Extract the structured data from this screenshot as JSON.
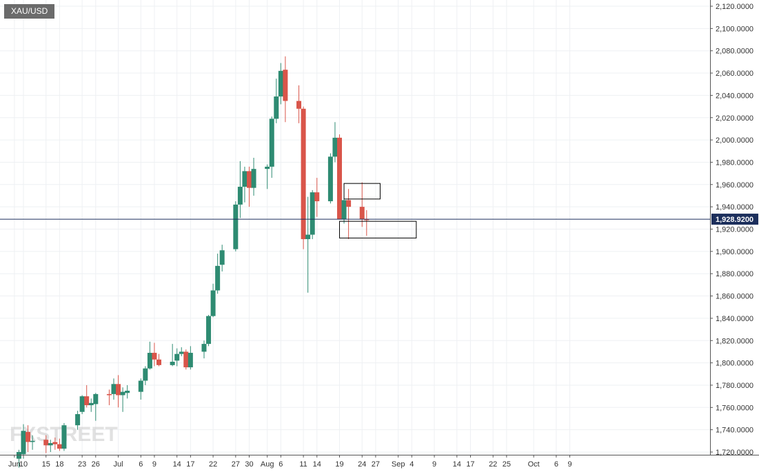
{
  "symbol": "XAU/USD",
  "watermark": "FXSTREET",
  "colors": {
    "up": "#2e8b72",
    "down": "#d9554a",
    "grid": "#eef0f3",
    "axis": "#555555",
    "price_line": "#1c2f5c",
    "box": "#000000"
  },
  "chart_data": {
    "type": "candlestick",
    "current_price": 1928.92,
    "current_price_label": "1,928.9200",
    "ylim": [
      1718,
      2124
    ],
    "y_ticks": [
      "2,120.0000",
      "2,100.0000",
      "2,080.0000",
      "2,060.0000",
      "2,040.0000",
      "2,020.0000",
      "2,000.0000",
      "1,980.0000",
      "1,960.0000",
      "1,940.0000",
      "1,920.0000",
      "1,900.0000",
      "1,880.0000",
      "1,860.0000",
      "1,840.0000",
      "1,820.0000",
      "1,800.0000",
      "1,780.0000",
      "1,760.0000",
      "1,740.0000",
      "1,720.0000"
    ],
    "y_tick_values": [
      2120,
      2100,
      2080,
      2060,
      2040,
      2020,
      2000,
      1980,
      1960,
      1940,
      1920,
      1900,
      1880,
      1860,
      1840,
      1820,
      1800,
      1780,
      1760,
      1740,
      1720
    ],
    "x_ticks": [
      {
        "label": "Jun",
        "date": "2020-06-08"
      },
      {
        "label": "10",
        "date": "2020-06-10"
      },
      {
        "label": "15",
        "date": "2020-06-15"
      },
      {
        "label": "18",
        "date": "2020-06-18"
      },
      {
        "label": "23",
        "date": "2020-06-23"
      },
      {
        "label": "26",
        "date": "2020-06-26"
      },
      {
        "label": "Jul",
        "date": "2020-07-01"
      },
      {
        "label": "6",
        "date": "2020-07-06"
      },
      {
        "label": "9",
        "date": "2020-07-09"
      },
      {
        "label": "14",
        "date": "2020-07-14"
      },
      {
        "label": "17",
        "date": "2020-07-17"
      },
      {
        "label": "22",
        "date": "2020-07-22"
      },
      {
        "label": "27",
        "date": "2020-07-27"
      },
      {
        "label": "30",
        "date": "2020-07-30"
      },
      {
        "label": "Aug",
        "date": "2020-08-03"
      },
      {
        "label": "6",
        "date": "2020-08-06"
      },
      {
        "label": "11",
        "date": "2020-08-11"
      },
      {
        "label": "14",
        "date": "2020-08-14"
      },
      {
        "label": "19",
        "date": "2020-08-19"
      },
      {
        "label": "24",
        "date": "2020-08-24"
      },
      {
        "label": "27",
        "date": "2020-08-27"
      },
      {
        "label": "Sep",
        "date": "2020-09-01"
      },
      {
        "label": "4",
        "date": "2020-09-04"
      },
      {
        "label": "9",
        "date": "2020-09-09"
      },
      {
        "label": "14",
        "date": "2020-09-14"
      },
      {
        "label": "17",
        "date": "2020-09-17"
      },
      {
        "label": "22",
        "date": "2020-09-22"
      },
      {
        "label": "25",
        "date": "2020-09-25"
      },
      {
        "label": "Oct",
        "date": "2020-10-01"
      },
      {
        "label": "6",
        "date": "2020-10-06"
      },
      {
        "label": "9",
        "date": "2020-10-09"
      }
    ],
    "candles": [
      {
        "date": "2020-06-09",
        "o": 1714,
        "h": 1722,
        "l": 1706,
        "c": 1720
      },
      {
        "date": "2020-06-10",
        "o": 1718,
        "h": 1745,
        "l": 1714,
        "c": 1739
      },
      {
        "date": "2020-06-11",
        "o": 1738,
        "h": 1744,
        "l": 1720,
        "c": 1729
      },
      {
        "date": "2020-06-12",
        "o": 1729,
        "h": 1735,
        "l": 1722,
        "c": 1730
      },
      {
        "date": "2020-06-15",
        "o": 1731,
        "h": 1735,
        "l": 1719,
        "c": 1726
      },
      {
        "date": "2020-06-16",
        "o": 1726,
        "h": 1731,
        "l": 1720,
        "c": 1728
      },
      {
        "date": "2020-06-17",
        "o": 1729,
        "h": 1733,
        "l": 1722,
        "c": 1727
      },
      {
        "date": "2020-06-18",
        "o": 1727,
        "h": 1732,
        "l": 1721,
        "c": 1723
      },
      {
        "date": "2020-06-19",
        "o": 1723,
        "h": 1746,
        "l": 1721,
        "c": 1744
      },
      {
        "date": "2020-06-22",
        "o": 1744,
        "h": 1757,
        "l": 1740,
        "c": 1754
      },
      {
        "date": "2020-06-23",
        "o": 1756,
        "h": 1771,
        "l": 1754,
        "c": 1770
      },
      {
        "date": "2020-06-24",
        "o": 1770,
        "h": 1780,
        "l": 1760,
        "c": 1762
      },
      {
        "date": "2020-06-25",
        "o": 1762,
        "h": 1768,
        "l": 1756,
        "c": 1764
      },
      {
        "date": "2020-06-26",
        "o": 1763,
        "h": 1773,
        "l": 1748,
        "c": 1772
      },
      {
        "date": "2020-06-29",
        "o": 1772,
        "h": 1776,
        "l": 1762,
        "c": 1771
      },
      {
        "date": "2020-06-30",
        "o": 1772,
        "h": 1786,
        "l": 1767,
        "c": 1781
      },
      {
        "date": "2020-07-01",
        "o": 1781,
        "h": 1789,
        "l": 1760,
        "c": 1771
      },
      {
        "date": "2020-07-02",
        "o": 1771,
        "h": 1778,
        "l": 1756,
        "c": 1774
      },
      {
        "date": "2020-07-03",
        "o": 1773,
        "h": 1780,
        "l": 1768,
        "c": 1775
      },
      {
        "date": "2020-07-06",
        "o": 1774,
        "h": 1786,
        "l": 1767,
        "c": 1784
      },
      {
        "date": "2020-07-07",
        "o": 1784,
        "h": 1797,
        "l": 1780,
        "c": 1795
      },
      {
        "date": "2020-07-08",
        "o": 1795,
        "h": 1819,
        "l": 1794,
        "c": 1809
      },
      {
        "date": "2020-07-09",
        "o": 1809,
        "h": 1818,
        "l": 1797,
        "c": 1803
      },
      {
        "date": "2020-07-10",
        "o": 1803,
        "h": 1808,
        "l": 1797,
        "c": 1798
      },
      {
        "date": "2020-07-13",
        "o": 1798,
        "h": 1817,
        "l": 1797,
        "c": 1801
      },
      {
        "date": "2020-07-14",
        "o": 1802,
        "h": 1813,
        "l": 1797,
        "c": 1808
      },
      {
        "date": "2020-07-15",
        "o": 1808,
        "h": 1814,
        "l": 1806,
        "c": 1810
      },
      {
        "date": "2020-07-16",
        "o": 1810,
        "h": 1812,
        "l": 1794,
        "c": 1796
      },
      {
        "date": "2020-07-17",
        "o": 1796,
        "h": 1815,
        "l": 1794,
        "c": 1809
      },
      {
        "date": "2020-07-20",
        "o": 1810,
        "h": 1820,
        "l": 1804,
        "c": 1817
      },
      {
        "date": "2020-07-21",
        "o": 1817,
        "h": 1843,
        "l": 1815,
        "c": 1842
      },
      {
        "date": "2020-07-22",
        "o": 1842,
        "h": 1871,
        "l": 1841,
        "c": 1865
      },
      {
        "date": "2020-07-23",
        "o": 1865,
        "h": 1898,
        "l": 1862,
        "c": 1887
      },
      {
        "date": "2020-07-24",
        "o": 1888,
        "h": 1906,
        "l": 1882,
        "c": 1901
      },
      {
        "date": "2020-07-27",
        "o": 1902,
        "h": 1945,
        "l": 1900,
        "c": 1942
      },
      {
        "date": "2020-07-28",
        "o": 1942,
        "h": 1981,
        "l": 1930,
        "c": 1958
      },
      {
        "date": "2020-07-29",
        "o": 1958,
        "h": 1976,
        "l": 1944,
        "c": 1972
      },
      {
        "date": "2020-07-30",
        "o": 1972,
        "h": 1976,
        "l": 1940,
        "c": 1957
      },
      {
        "date": "2020-07-31",
        "o": 1957,
        "h": 1984,
        "l": 1950,
        "c": 1974
      },
      {
        "date": "2020-08-03",
        "o": 1974,
        "h": 1978,
        "l": 1956,
        "c": 1976
      },
      {
        "date": "2020-08-04",
        "o": 1976,
        "h": 2021,
        "l": 1966,
        "c": 2019
      },
      {
        "date": "2020-08-05",
        "o": 2019,
        "h": 2055,
        "l": 2015,
        "c": 2039
      },
      {
        "date": "2020-08-06",
        "o": 2039,
        "h": 2069,
        "l": 2032,
        "c": 2062
      },
      {
        "date": "2020-08-07",
        "o": 2063,
        "h": 2075,
        "l": 2016,
        "c": 2035
      },
      {
        "date": "2020-08-10",
        "o": 2035,
        "h": 2049,
        "l": 2015,
        "c": 2028
      },
      {
        "date": "2020-08-11",
        "o": 2028,
        "h": 2030,
        "l": 1902,
        "c": 1911
      },
      {
        "date": "2020-08-12",
        "o": 1911,
        "h": 1949,
        "l": 1863,
        "c": 1915
      },
      {
        "date": "2020-08-13",
        "o": 1915,
        "h": 1955,
        "l": 1911,
        "c": 1953
      },
      {
        "date": "2020-08-14",
        "o": 1953,
        "h": 1966,
        "l": 1931,
        "c": 1945
      },
      {
        "date": "2020-08-17",
        "o": 1945,
        "h": 1988,
        "l": 1943,
        "c": 1985
      },
      {
        "date": "2020-08-18",
        "o": 1985,
        "h": 2016,
        "l": 1980,
        "c": 2002
      },
      {
        "date": "2020-08-19",
        "o": 2002,
        "h": 2005,
        "l": 1929,
        "c": 1929
      },
      {
        "date": "2020-08-20",
        "o": 1929,
        "h": 1947,
        "l": 1925,
        "c": 1946
      },
      {
        "date": "2020-08-21",
        "o": 1946,
        "h": 1956,
        "l": 1911,
        "c": 1940
      },
      {
        "date": "2020-08-24",
        "o": 1940,
        "h": 1962,
        "l": 1922,
        "c": 1929
      },
      {
        "date": "2020-08-25",
        "o": 1929,
        "h": 1937,
        "l": 1914,
        "c": 1928
      }
    ],
    "annotations": [
      {
        "type": "rectangle",
        "from_date": "2020-08-20",
        "to_date": "2020-08-28",
        "y_top": 1961,
        "y_bottom": 1947
      },
      {
        "type": "rectangle",
        "from_date": "2020-08-19",
        "to_date": "2020-09-05",
        "y_top": 1927,
        "y_bottom": 1912
      }
    ]
  }
}
